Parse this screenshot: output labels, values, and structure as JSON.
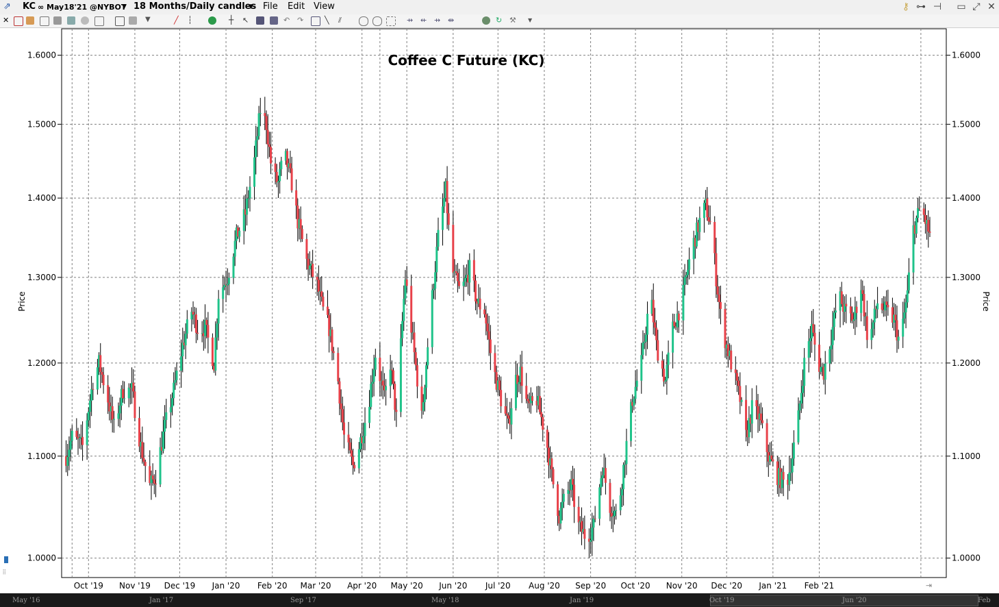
{
  "window": {
    "symbol": "KC",
    "contract": "∞ May18'21 @NYBOT",
    "period": "18 Months/Daily candles",
    "menu": [
      "File",
      "Edit",
      "View"
    ]
  },
  "colors": {
    "up": "#1fc38a",
    "down": "#e8424a",
    "wick": "#000000",
    "grid": "#7f7f7f",
    "background": "#ffffff",
    "scrollbar": "#1a1a1a"
  },
  "chart_data": {
    "type": "candlestick",
    "title": "Coffee C Future (KC)",
    "ylabel_left": "Price",
    "ylabel_right": "Price",
    "y_scale": "log",
    "ylim": [
      0.982,
      1.64
    ],
    "y_ticks": [
      "1.6000",
      "1.5000",
      "1.4000",
      "1.3000",
      "1.2000",
      "1.1000",
      "1.0000"
    ],
    "x_ticks": [
      "Oct '19",
      "Nov '19",
      "Dec '19",
      "Jan '20",
      "Feb '20",
      "Mar '20",
      "Apr '20",
      "May '20",
      "Jun '20",
      "Jul '20",
      "Aug '20",
      "Sep '20",
      "Oct '20",
      "Nov '20",
      "Dec '20",
      "Jan '21",
      "Feb '21"
    ],
    "grid": true,
    "close_path": [
      [
        "2019-09-16",
        1.1
      ],
      [
        "2019-09-20",
        1.12
      ],
      [
        "2019-09-27",
        1.11
      ],
      [
        "2019-10-04",
        1.18
      ],
      [
        "2019-10-08",
        1.2
      ],
      [
        "2019-10-14",
        1.16
      ],
      [
        "2019-10-18",
        1.13
      ],
      [
        "2019-10-24",
        1.17
      ],
      [
        "2019-10-30",
        1.17
      ],
      [
        "2019-11-05",
        1.11
      ],
      [
        "2019-11-11",
        1.07
      ],
      [
        "2019-11-15",
        1.08
      ],
      [
        "2019-11-21",
        1.13
      ],
      [
        "2019-11-27",
        1.17
      ],
      [
        "2019-12-03",
        1.22
      ],
      [
        "2019-12-09",
        1.26
      ],
      [
        "2019-12-13",
        1.24
      ],
      [
        "2019-12-18",
        1.24
      ],
      [
        "2019-12-24",
        1.2
      ],
      [
        "2019-12-27",
        1.28
      ],
      [
        "2020-01-02",
        1.3
      ],
      [
        "2020-01-08",
        1.35
      ],
      [
        "2020-01-14",
        1.38
      ],
      [
        "2020-01-20",
        1.45
      ],
      [
        "2020-01-24",
        1.52
      ],
      [
        "2020-01-28",
        1.5
      ],
      [
        "2020-02-01",
        1.43
      ],
      [
        "2020-02-05",
        1.42
      ],
      [
        "2020-02-09",
        1.46
      ],
      [
        "2020-02-14",
        1.42
      ],
      [
        "2020-02-18",
        1.37
      ],
      [
        "2020-02-24",
        1.32
      ],
      [
        "2020-03-02",
        1.29
      ],
      [
        "2020-03-06",
        1.26
      ],
      [
        "2020-03-10",
        1.24
      ],
      [
        "2020-03-16",
        1.18
      ],
      [
        "2020-03-20",
        1.12
      ],
      [
        "2020-03-26",
        1.09
      ],
      [
        "2020-03-30",
        1.11
      ],
      [
        "2020-04-05",
        1.15
      ],
      [
        "2020-04-10",
        1.21
      ],
      [
        "2020-04-16",
        1.16
      ],
      [
        "2020-04-20",
        1.2
      ],
      [
        "2020-04-24",
        1.14
      ],
      [
        "2020-04-30",
        1.3
      ],
      [
        "2020-05-06",
        1.21
      ],
      [
        "2020-05-11",
        1.14
      ],
      [
        "2020-05-16",
        1.24
      ],
      [
        "2020-05-22",
        1.35
      ],
      [
        "2020-05-27",
        1.41
      ],
      [
        "2020-05-31",
        1.31
      ],
      [
        "2020-06-06",
        1.28
      ],
      [
        "2020-06-12",
        1.31
      ],
      [
        "2020-06-17",
        1.27
      ],
      [
        "2020-06-22",
        1.26
      ],
      [
        "2020-06-27",
        1.2
      ],
      [
        "2020-07-03",
        1.16
      ],
      [
        "2020-07-08",
        1.13
      ],
      [
        "2020-07-12",
        1.18
      ],
      [
        "2020-07-16",
        1.19
      ],
      [
        "2020-07-21",
        1.15
      ],
      [
        "2020-07-27",
        1.16
      ],
      [
        "2020-08-02",
        1.12
      ],
      [
        "2020-08-06",
        1.08
      ],
      [
        "2020-08-11",
        1.04
      ],
      [
        "2020-08-15",
        1.06
      ],
      [
        "2020-08-19",
        1.07
      ],
      [
        "2020-08-24",
        1.03
      ],
      [
        "2020-08-29",
        1.02
      ],
      [
        "2020-09-03",
        1.03
      ],
      [
        "2020-09-09",
        1.09
      ],
      [
        "2020-09-14",
        1.05
      ],
      [
        "2020-09-19",
        1.04
      ],
      [
        "2020-09-24",
        1.1
      ],
      [
        "2020-09-29",
        1.16
      ],
      [
        "2020-10-05",
        1.2
      ],
      [
        "2020-10-11",
        1.28
      ],
      [
        "2020-10-15",
        1.22
      ],
      [
        "2020-10-21",
        1.18
      ],
      [
        "2020-10-26",
        1.24
      ],
      [
        "2020-11-01",
        1.27
      ],
      [
        "2020-11-07",
        1.33
      ],
      [
        "2020-11-13",
        1.37
      ],
      [
        "2020-11-17",
        1.39
      ],
      [
        "2020-11-21",
        1.36
      ],
      [
        "2020-11-24",
        1.3
      ],
      [
        "2020-11-28",
        1.24
      ],
      [
        "2020-12-04",
        1.2
      ],
      [
        "2020-12-10",
        1.16
      ],
      [
        "2020-12-14",
        1.12
      ],
      [
        "2020-12-18",
        1.15
      ],
      [
        "2020-12-23",
        1.14
      ],
      [
        "2020-12-29",
        1.1
      ],
      [
        "2021-01-04",
        1.08
      ],
      [
        "2021-01-10",
        1.07
      ],
      [
        "2021-01-14",
        1.1
      ],
      [
        "2021-01-18",
        1.14
      ],
      [
        "2021-01-22",
        1.2
      ],
      [
        "2021-01-27",
        1.24
      ],
      [
        "2021-01-31",
        1.2
      ],
      [
        "2021-02-04",
        1.19
      ],
      [
        "2021-02-09",
        1.23
      ],
      [
        "2021-02-14",
        1.28
      ],
      [
        "2021-02-18",
        1.26
      ],
      [
        "2021-02-24",
        1.25
      ],
      [
        "2021-03-01",
        1.29
      ],
      [
        "2021-03-06",
        1.22
      ],
      [
        "2021-03-12",
        1.27
      ],
      [
        "2021-03-17",
        1.26
      ],
      [
        "2021-03-23",
        1.25
      ],
      [
        "2021-03-27",
        1.22
      ],
      [
        "2021-04-01",
        1.28
      ],
      [
        "2021-04-05",
        1.36
      ],
      [
        "2021-04-10",
        1.39
      ],
      [
        "2021-04-13",
        1.37
      ],
      [
        "2021-04-18",
        1.34
      ]
    ]
  },
  "scroll_labels": [
    "May '16",
    "Jan '17",
    "Sep '17",
    "May '18",
    "Jan '19",
    "Oct '19",
    "Jun '20",
    "Feb"
  ]
}
